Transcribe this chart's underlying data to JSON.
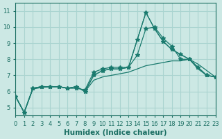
{
  "xlabel": "Humidex (Indice chaleur)",
  "ylabel": "",
  "bg_color": "#cce8e4",
  "grid_color": "#aad4d0",
  "line_color": "#1a7a6e",
  "xlim": [
    0,
    23
  ],
  "ylim": [
    4.5,
    11.5
  ],
  "yticks": [
    5,
    6,
    7,
    8,
    9,
    10,
    11
  ],
  "xticks": [
    0,
    1,
    2,
    3,
    4,
    5,
    6,
    7,
    8,
    9,
    10,
    11,
    12,
    13,
    14,
    15,
    16,
    17,
    18,
    19,
    20,
    21,
    22,
    23
  ],
  "lines": [
    {
      "x": [
        0,
        1,
        2,
        3,
        4,
        5,
        6,
        7,
        8,
        9,
        10,
        11,
        12,
        13,
        14,
        15,
        16,
        17,
        18,
        19,
        20,
        21,
        22,
        23
      ],
      "y": [
        5.7,
        4.7,
        6.2,
        6.3,
        6.3,
        6.3,
        6.2,
        6.2,
        6.1,
        7.2,
        7.4,
        7.5,
        7.5,
        7.5,
        8.25,
        9.9,
        10.0,
        9.3,
        8.8,
        8.0,
        8.0,
        7.5,
        7.0,
        6.9
      ],
      "marker": "*",
      "markersize": 4
    },
    {
      "x": [
        0,
        1,
        2,
        3,
        4,
        5,
        6,
        7,
        8,
        9,
        10,
        11,
        12,
        13,
        14,
        15,
        16,
        17,
        18,
        19,
        20,
        21,
        22,
        23
      ],
      "y": [
        5.7,
        4.7,
        6.2,
        6.3,
        6.3,
        6.3,
        6.2,
        6.3,
        6.0,
        7.0,
        7.3,
        7.4,
        7.4,
        7.5,
        9.2,
        10.9,
        9.9,
        9.1,
        8.6,
        8.3,
        8.0,
        7.5,
        7.0,
        6.9
      ],
      "marker": "*",
      "markersize": 4
    },
    {
      "x": [
        0,
        1,
        2,
        3,
        4,
        5,
        6,
        7,
        8,
        9,
        10,
        11,
        12,
        13,
        14,
        15,
        16,
        17,
        18,
        19,
        20,
        21,
        22,
        23
      ],
      "y": [
        5.7,
        4.7,
        6.2,
        6.3,
        6.3,
        6.3,
        6.2,
        6.3,
        6.0,
        7.0,
        7.3,
        7.4,
        7.4,
        7.5,
        9.2,
        10.9,
        9.9,
        9.1,
        8.6,
        8.3,
        8.0,
        7.7,
        7.3,
        6.9
      ],
      "marker": null,
      "markersize": 0
    },
    {
      "x": [
        0,
        1,
        2,
        3,
        4,
        5,
        6,
        7,
        8,
        9,
        10,
        11,
        12,
        13,
        14,
        15,
        16,
        17,
        18,
        19,
        20,
        21,
        22,
        23
      ],
      "y": [
        5.7,
        4.7,
        6.15,
        6.25,
        6.3,
        6.3,
        6.2,
        6.3,
        6.0,
        6.7,
        6.9,
        7.0,
        7.1,
        7.2,
        7.4,
        7.6,
        7.7,
        7.8,
        7.9,
        7.9,
        8.0,
        7.4,
        7.0,
        6.9
      ],
      "marker": null,
      "markersize": 0
    }
  ],
  "font_color": "#1a6e62",
  "tick_fontsize": 6,
  "label_fontsize": 7.5
}
